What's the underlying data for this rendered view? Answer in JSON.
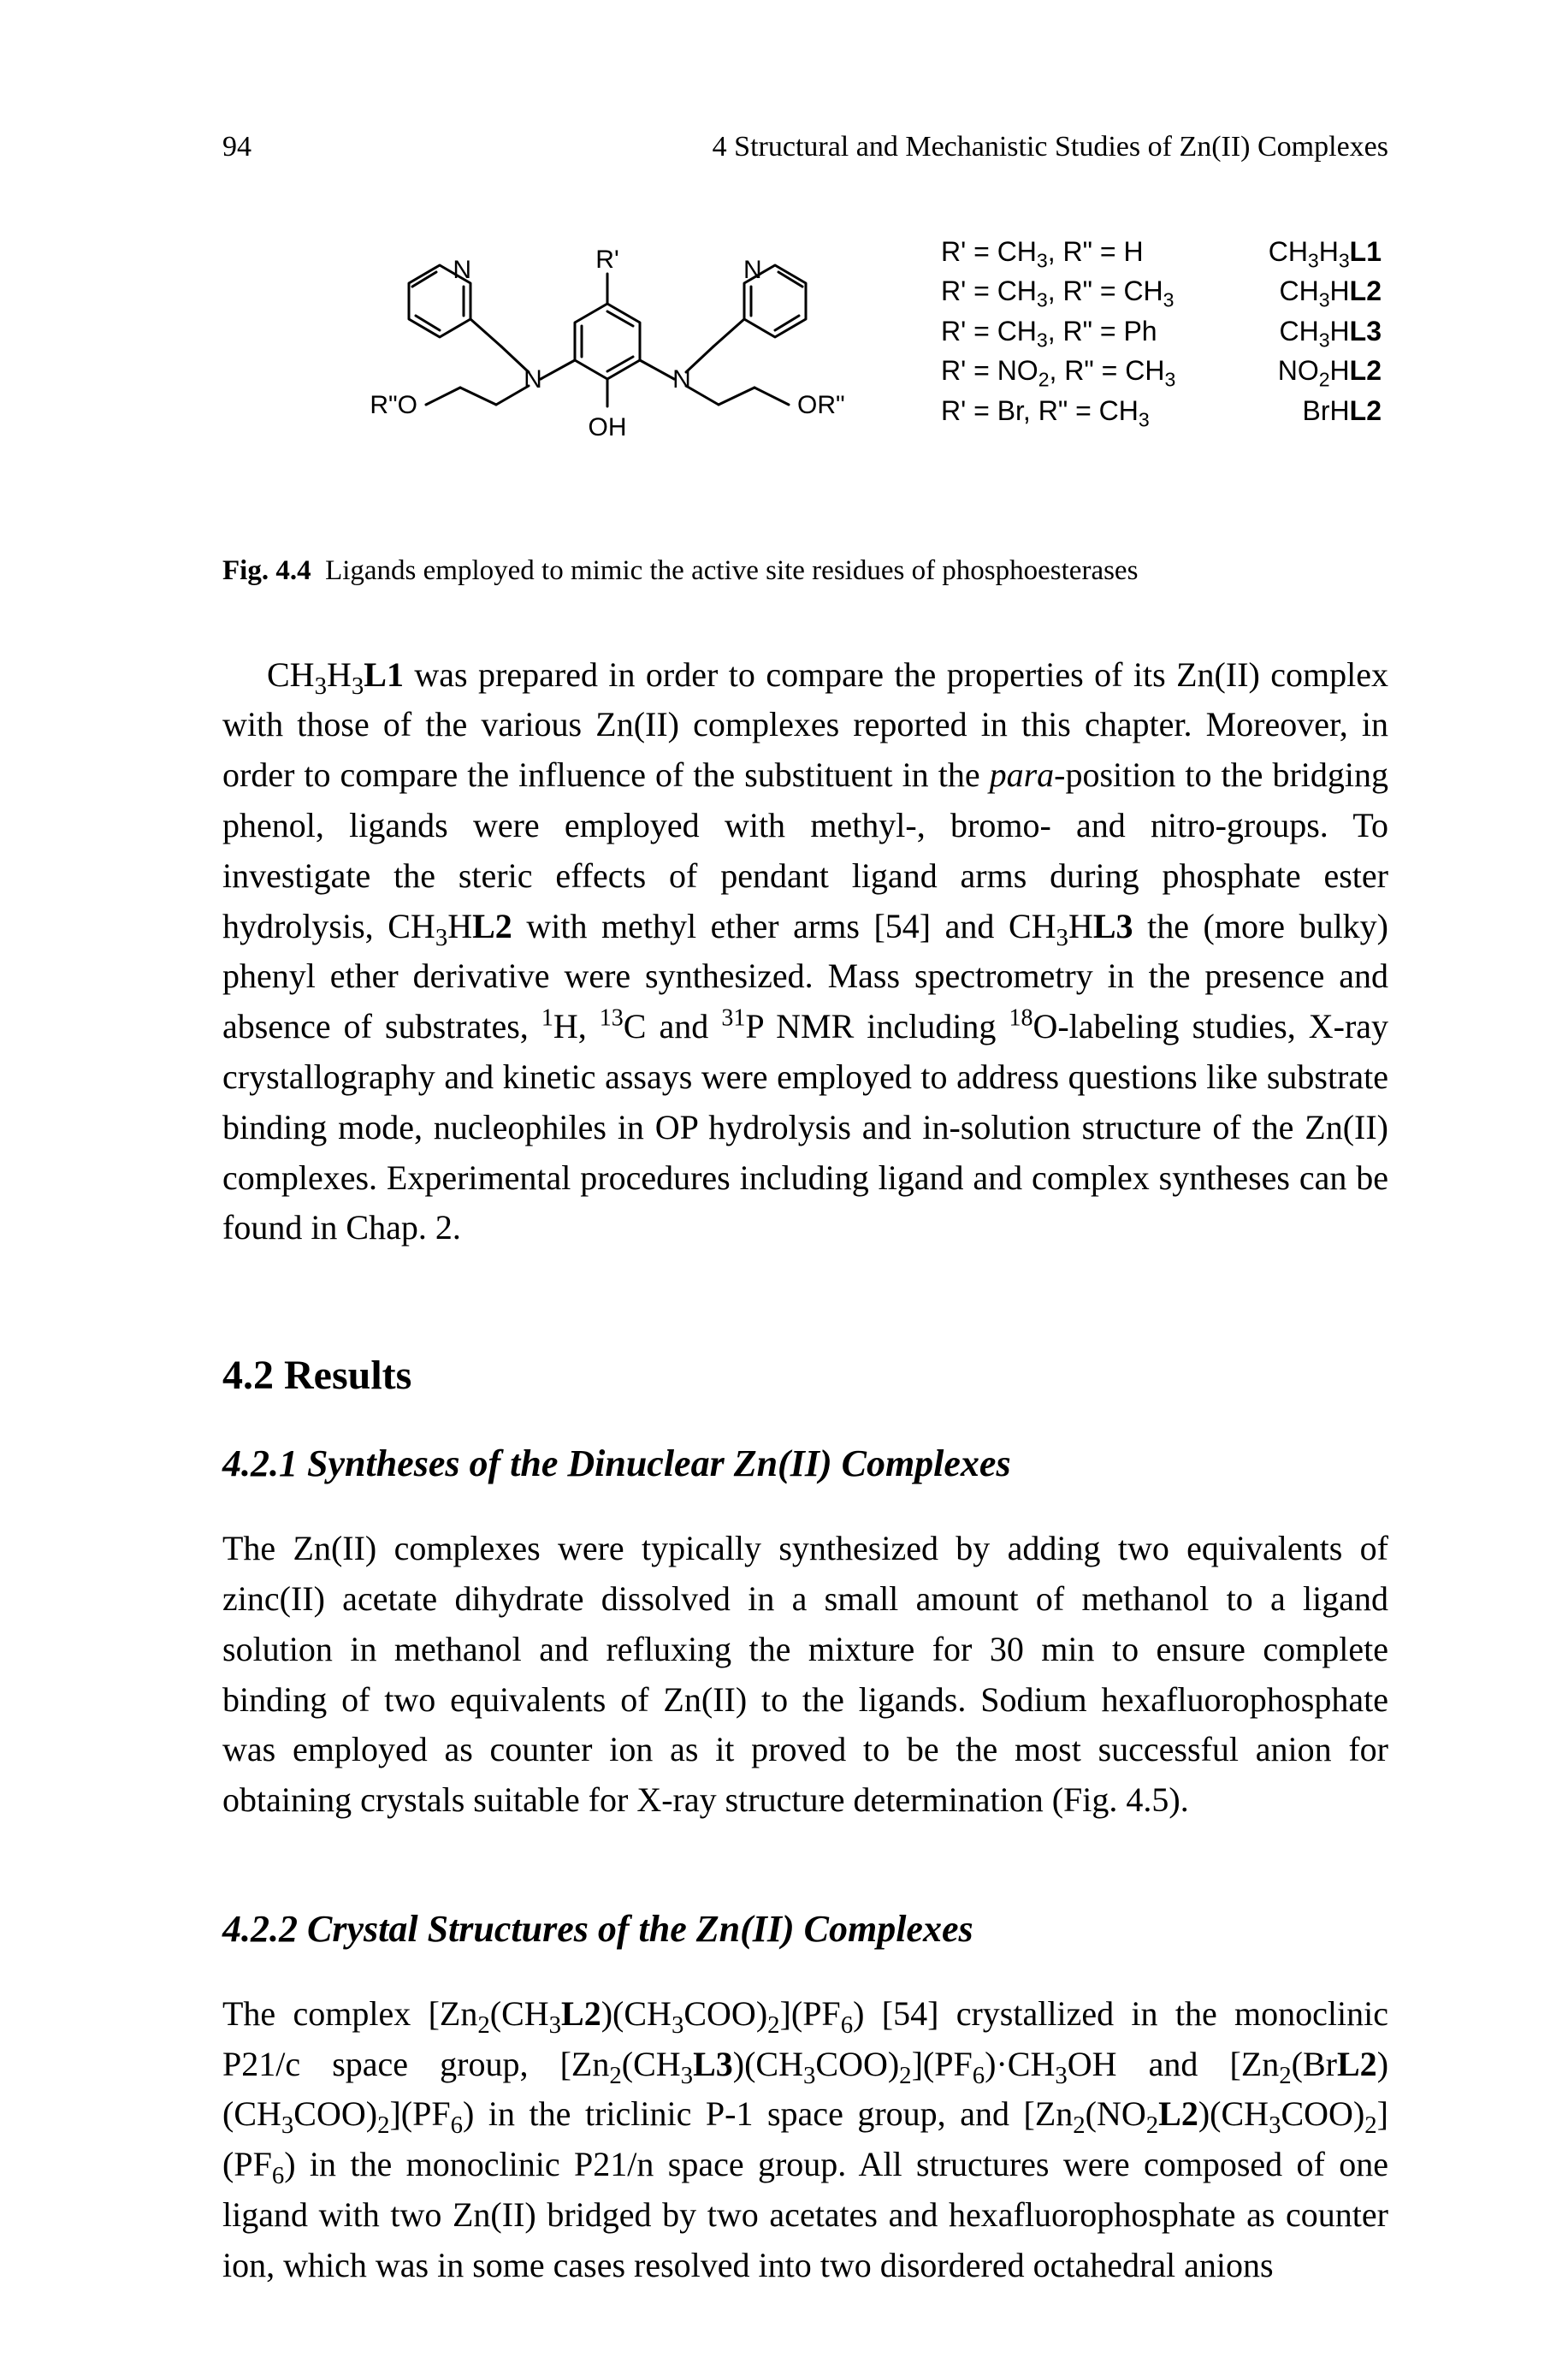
{
  "page": {
    "number": "94",
    "runningTitle": "4   Structural and Mechanistic Studies of Zn(II) Complexes"
  },
  "figure": {
    "substituents": [
      {
        "lhs": "R' = CH<sub>3</sub>, R\" = H",
        "rhs": "CH<sub>3</sub>H<sub>3</sub><b>L1</b>"
      },
      {
        "lhs": "R' = CH<sub>3</sub>, R\" = CH<sub>3</sub>",
        "rhs": "CH<sub>3</sub>H<b>L2</b>"
      },
      {
        "lhs": "R' = CH<sub>3</sub>, R\" = Ph",
        "rhs": "CH<sub>3</sub>H<b>L3</b>"
      },
      {
        "lhs": "R' = NO<sub>2</sub>, R\" = CH<sub>3</sub>",
        "rhs": "NO<sub>2</sub>H<b>L2</b>"
      },
      {
        "lhs": "R' = Br, R\" = CH<sub>3</sub>",
        "rhs": "BrH<b>L2</b>"
      }
    ],
    "captionLabel": "Fig. 4.4",
    "captionText": "Ligands employed to mimic the active site residues of phosphoesterases",
    "atomLabels": {
      "R1": "R'",
      "N_left": "N",
      "N_right": "N",
      "N_am_l": "N",
      "N_am_r": "N",
      "OH": "OH",
      "OR_left": "R\"O",
      "OR_right": "OR\""
    }
  },
  "paragraphs": {
    "p1": "CH<sub>3</sub>H<sub>3</sub><b>L1</b> was prepared in order to compare the properties of its Zn(II) complex with those of the various Zn(II) complexes reported in this chapter. Moreover, in order to compare the influence of the substituent in the <span class=\"ital\">para</span>-position to the bridging phenol, ligands were employed with methyl-, bromo- and nitro-groups. To investigate the steric effects of pendant ligand arms during phosphate ester hydrolysis, CH<sub>3</sub>H<b>L2</b> with methyl ether arms [54] and CH<sub>3</sub>H<b>L3</b> the (more bulky) phenyl ether derivative were synthesized. Mass spectrometry in the presence and absence of substrates, <sup>1</sup>H, <sup>13</sup>C and <sup>31</sup>P NMR including <sup>18</sup>O-labeling studies, X-ray crystallography and kinetic assays were employed to address questions like substrate binding mode, nucleophiles in OP hydrolysis and in-solution structure of the Zn(II) complexes. Experimental procedures including ligand and complex syntheses can be found in Chap. 2."
  },
  "sections": {
    "h2": "4.2  Results",
    "h3a": "4.2.1  Syntheses of the Dinuclear Zn(II) Complexes",
    "p2": "The Zn(II) complexes were typically synthesized by adding two equivalents of zinc(II) acetate dihydrate dissolved in a small amount of methanol to a ligand solution in methanol and refluxing the mixture for 30 min to ensure complete binding of two equivalents of Zn(II) to the ligands. Sodium hexafluorophosphate was employed as counter ion as it proved to be the most successful anion for obtaining crystals suitable for X-ray structure determination (Fig. 4.5).",
    "h3b": "4.2.2  Crystal Structures of the Zn(II) Complexes",
    "p3": "The complex [Zn<sub>2</sub>(CH<sub>3</sub><b>L2</b>)(CH<sub>3</sub>COO)<sub>2</sub>](PF<sub>6</sub>) [54] crystallized in the monoclinic P21/c space group, [Zn<sub>2</sub>(CH<sub>3</sub><b>L3</b>)(CH<sub>3</sub>COO)<sub>2</sub>](PF<sub>6</sub>)·CH<sub>3</sub>OH and [Zn<sub>2</sub>(Br<b>L2</b>) (CH<sub>3</sub>COO)<sub>2</sub>](PF<sub>6</sub>) in the triclinic P-1 space group, and [Zn<sub>2</sub>(NO<sub>2</sub><b>L2</b>)(CH<sub>3</sub>COO)<sub>2</sub>] (PF<sub>6</sub>) in the monoclinic P21/n space group. All structures were composed of one ligand with two Zn(II) bridged by two acetates and hexafluorophosphate as counter ion, which was in some cases resolved into two disordered octahedral anions"
  }
}
